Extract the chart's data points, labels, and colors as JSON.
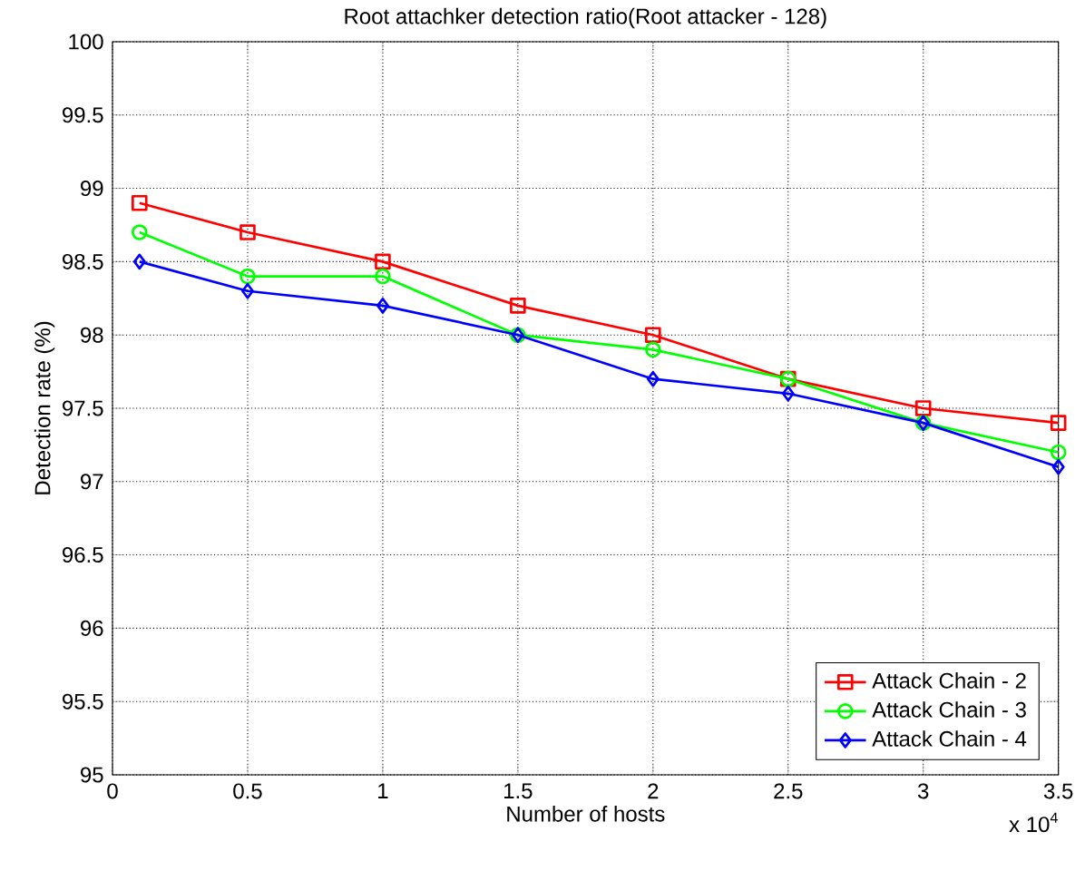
{
  "chart_data": {
    "type": "line",
    "title": "Root attachker detection ratio(Root attacker - 128)",
    "xlabel": "Number of hosts",
    "ylabel": "Detection rate (%)",
    "annotations": [
      "x 10$^{4}$"
    ],
    "x": [
      0.1,
      0.5,
      1,
      1.5,
      2,
      2.5,
      3,
      3.5
    ],
    "series": [
      {
        "name": "Attack Chain - 2",
        "color": "#ff0000",
        "marker": "square",
        "values": [
          98.9,
          98.7,
          98.5,
          98.2,
          98.0,
          97.7,
          97.5,
          97.4
        ]
      },
      {
        "name": "Attack Chain - 3",
        "color": "#00ff00",
        "marker": "circle",
        "values": [
          98.7,
          98.4,
          98.4,
          98.0,
          97.9,
          97.7,
          97.4,
          97.2
        ]
      },
      {
        "name": "Attack Chain - 4",
        "color": "#0000ff",
        "marker": "diamond",
        "values": [
          98.5,
          98.3,
          98.2,
          98.0,
          97.7,
          97.6,
          97.4,
          97.1
        ]
      }
    ],
    "xlim": [
      0,
      3.5
    ],
    "ylim": [
      95,
      100
    ],
    "xticks": [
      0,
      0.5,
      1,
      1.5,
      2,
      2.5,
      3,
      3.5
    ],
    "yticks": [
      95,
      95.5,
      96,
      96.5,
      97,
      97.5,
      98,
      98.5,
      99,
      99.5,
      100
    ],
    "grid": true,
    "legend": "bottom right",
    "line_style": "solid"
  }
}
